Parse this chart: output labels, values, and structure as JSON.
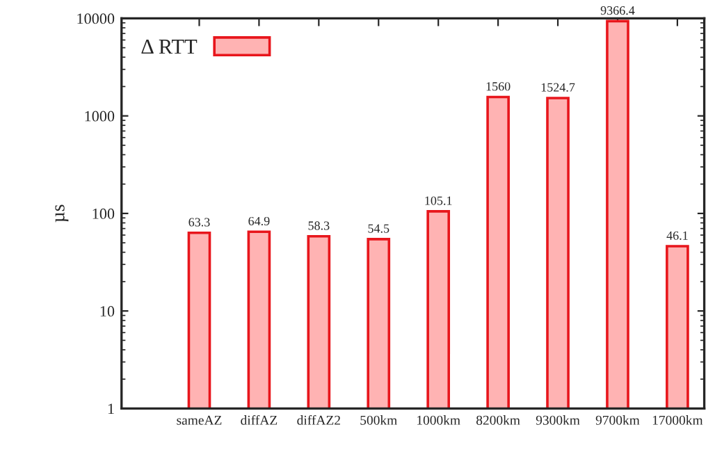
{
  "chart_data": {
    "type": "bar",
    "ylabel": "µs",
    "categories": [
      "sameAZ",
      "diffAZ",
      "diffAZ2",
      "500km",
      "1000km",
      "8200km",
      "9300km",
      "9700km",
      "17000km"
    ],
    "series": [
      {
        "name": "Δ RTT",
        "color": "#ffb3b3",
        "values": [
          63.3,
          64.9,
          58.3,
          54.5,
          105.1,
          1560,
          1524.7,
          9366.4,
          46.1
        ]
      }
    ],
    "log": true,
    "ylim": [
      1,
      10000
    ],
    "yticks": [
      1,
      10,
      100,
      1000,
      10000
    ],
    "data_labels": true,
    "legend": "top left",
    "grid": false
  }
}
